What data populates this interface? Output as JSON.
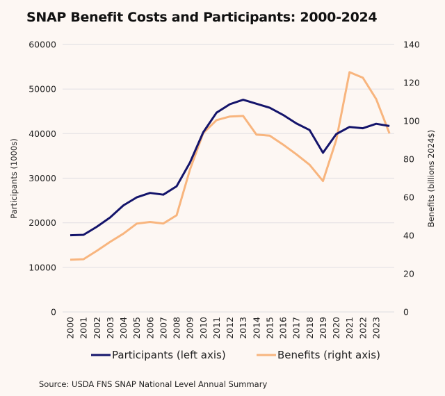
{
  "chart_data": {
    "type": "line",
    "title": "SNAP Benefit Costs and Participants: 2000-2024",
    "x": [
      2000,
      2001,
      2002,
      2003,
      2004,
      2005,
      2006,
      2007,
      2008,
      2009,
      2010,
      2011,
      2012,
      2013,
      2014,
      2015,
      2016,
      2017,
      2018,
      2019,
      2020,
      2021,
      2022,
      2023,
      2024
    ],
    "x_tick_labels": [
      "2000",
      "2001",
      "2002",
      "2003",
      "2004",
      "2005",
      "2006",
      "2007",
      "2008",
      "2009",
      "2010",
      "2011",
      "2012",
      "2013",
      "2014",
      "2015",
      "2016",
      "2017",
      "2018",
      "2019",
      "2020",
      "2021",
      "2022",
      "2023"
    ],
    "xlabel": "",
    "y_left": {
      "label": "Participants (1000s)",
      "lim": [
        0,
        60000
      ],
      "ticks": [
        0,
        10000,
        20000,
        30000,
        40000,
        50000,
        60000
      ],
      "tick_labels": [
        "0",
        "10000",
        "20000",
        "30000",
        "40000",
        "50000",
        "60000"
      ]
    },
    "y_right": {
      "label": "Benefits (billions 2024$)",
      "lim": [
        0,
        140
      ],
      "ticks": [
        0,
        20,
        40,
        60,
        80,
        100,
        120,
        140
      ],
      "tick_labels": [
        "0",
        "20",
        "40",
        "60",
        "80",
        "100",
        "120",
        "140"
      ]
    },
    "grid": true,
    "legend_position": "bottom",
    "series": [
      {
        "name": "Participants (left axis)",
        "axis": "left",
        "color": "#14146b",
        "values": [
          17200,
          17300,
          19100,
          21200,
          23900,
          25700,
          26700,
          26300,
          28200,
          33500,
          40300,
          44700,
          46600,
          47600,
          46700,
          45800,
          44200,
          42300,
          40800,
          35700,
          39900,
          41500,
          41200,
          42200,
          41700
        ]
      },
      {
        "name": "Benefits (right axis)",
        "axis": "right",
        "color": "#f8b57e",
        "values": [
          27.3,
          27.6,
          32.0,
          36.7,
          41.0,
          46.2,
          47.1,
          46.3,
          50.6,
          74.5,
          93.6,
          100.4,
          102.3,
          102.6,
          92.8,
          92.3,
          87.6,
          82.5,
          77.0,
          68.5,
          90.0,
          125.5,
          122.6,
          111.4,
          93.5
        ]
      }
    ],
    "source": "Source: USDA FNS SNAP National Level Annual Summary"
  }
}
